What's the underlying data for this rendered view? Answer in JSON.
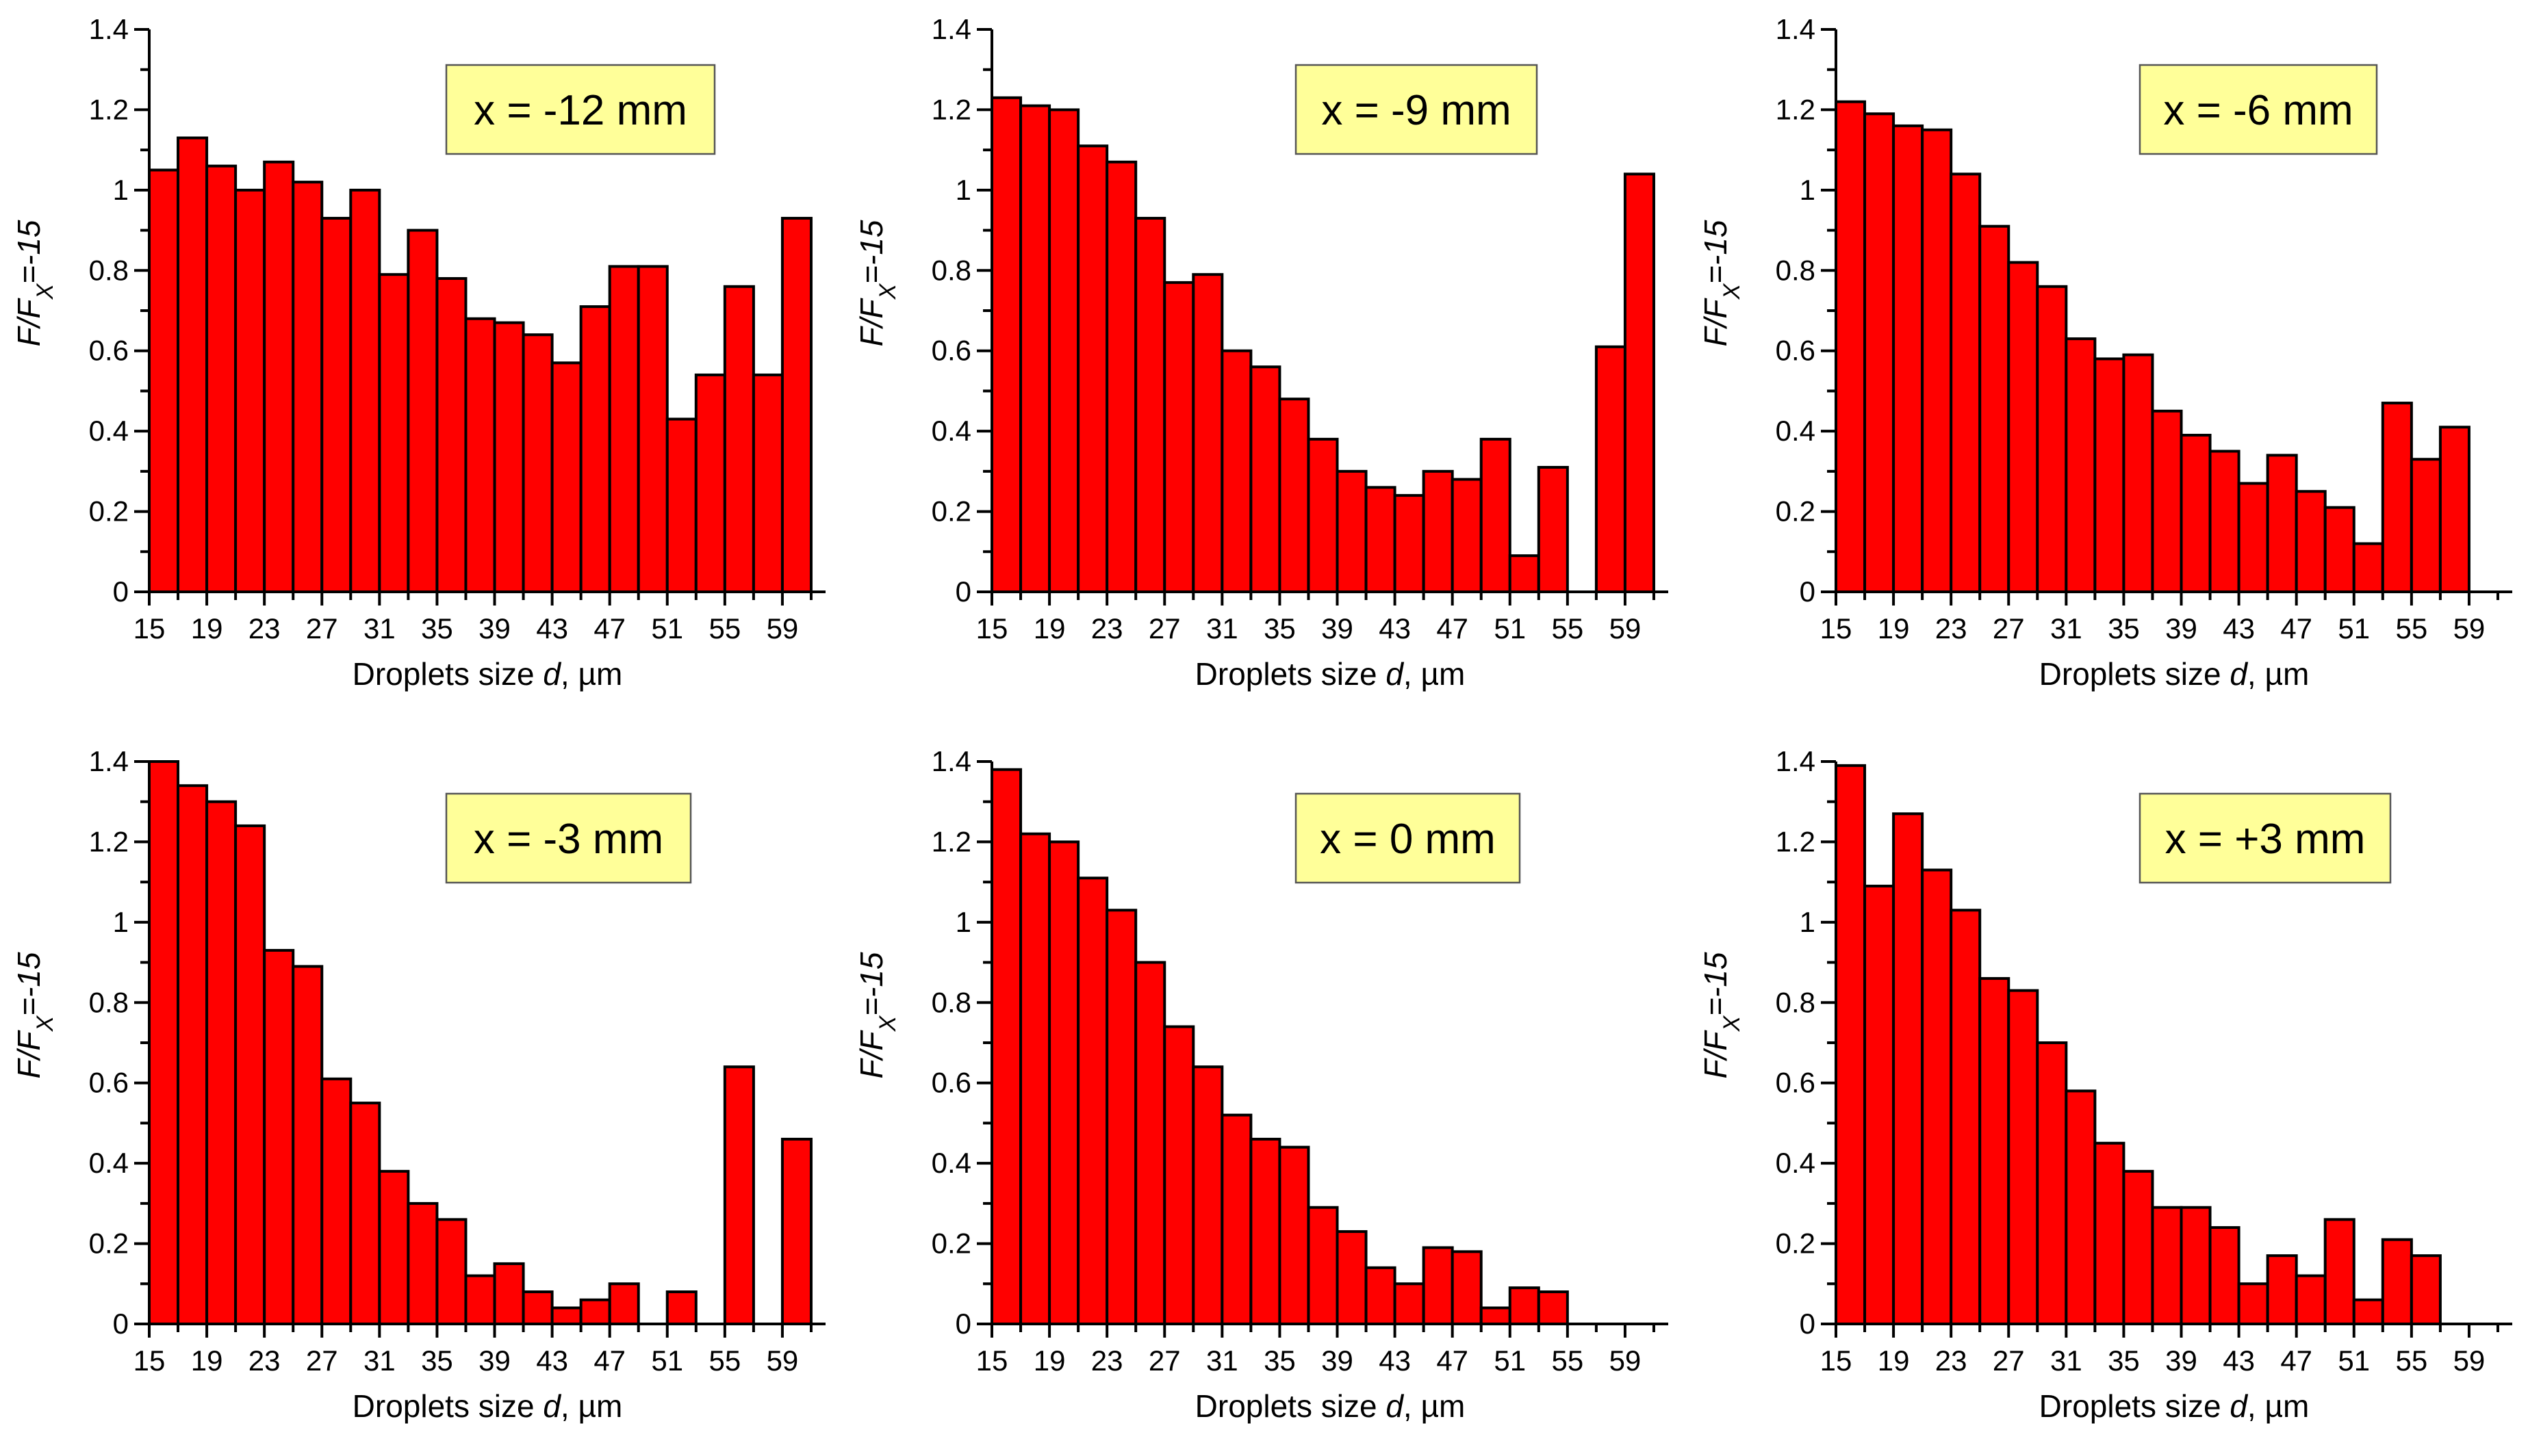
{
  "colors": {
    "bar": "#ff0000",
    "annotation_bg": "#ffff99",
    "axis": "#000000"
  },
  "chart_data": [
    {
      "type": "bar",
      "panel": "top-left",
      "title": "",
      "annotation": "x = -12 mm",
      "xlabel_prefix": "Droplets size ",
      "xlabel_var": "d",
      "xlabel_suffix": ", µm",
      "ylabel_prefix": "F/F",
      "ylabel_sub": "X",
      "ylabel_suffix": "=-15",
      "xlim": [
        15,
        62
      ],
      "ylim": [
        0,
        1.4
      ],
      "xticks": [
        15,
        19,
        23,
        27,
        31,
        35,
        39,
        43,
        47,
        51,
        55,
        59
      ],
      "yticks": [
        0,
        0.2,
        0.4,
        0.6,
        0.8,
        1,
        1.2,
        1.4
      ],
      "bin_width": 2,
      "bins": [
        15,
        17,
        19,
        21,
        23,
        25,
        27,
        29,
        31,
        33,
        35,
        37,
        39,
        41,
        43,
        45,
        47,
        49,
        51,
        53,
        55,
        57,
        59
      ],
      "values": [
        1.05,
        1.13,
        1.06,
        1.0,
        1.07,
        1.02,
        0.93,
        1.0,
        0.79,
        0.9,
        0.78,
        0.68,
        0.67,
        0.64,
        0.57,
        0.71,
        0.81,
        0.81,
        0.43,
        0.54,
        0.76,
        0.54,
        0.93
      ]
    },
    {
      "type": "bar",
      "panel": "top-middle",
      "title": "",
      "annotation": "x = -9 mm",
      "xlabel_prefix": "Droplets size ",
      "xlabel_var": "d",
      "xlabel_suffix": ", µm",
      "ylabel_prefix": "F/F",
      "ylabel_sub": "X",
      "ylabel_suffix": "=-15",
      "xlim": [
        15,
        62
      ],
      "ylim": [
        0,
        1.4
      ],
      "xticks": [
        15,
        19,
        23,
        27,
        31,
        35,
        39,
        43,
        47,
        51,
        55,
        59
      ],
      "yticks": [
        0,
        0.2,
        0.4,
        0.6,
        0.8,
        1,
        1.2,
        1.4
      ],
      "bin_width": 2,
      "bins": [
        15,
        17,
        19,
        21,
        23,
        25,
        27,
        29,
        31,
        33,
        35,
        37,
        39,
        41,
        43,
        45,
        47,
        49,
        51,
        53,
        55,
        57,
        59
      ],
      "values": [
        1.23,
        1.21,
        1.2,
        1.11,
        1.07,
        0.93,
        0.77,
        0.79,
        0.6,
        0.56,
        0.48,
        0.38,
        0.3,
        0.26,
        0.24,
        0.3,
        0.28,
        0.38,
        0.09,
        0.31,
        0.0,
        0.61,
        1.04
      ]
    },
    {
      "type": "bar",
      "panel": "top-right",
      "title": "",
      "annotation": "x = -6 mm",
      "xlabel_prefix": "Droplets size ",
      "xlabel_var": "d",
      "xlabel_suffix": ", µm",
      "ylabel_prefix": "F/F",
      "ylabel_sub": "X",
      "ylabel_suffix": "=-15",
      "xlim": [
        15,
        62
      ],
      "ylim": [
        0,
        1.4
      ],
      "xticks": [
        15,
        19,
        23,
        27,
        31,
        35,
        39,
        43,
        47,
        51,
        55,
        59
      ],
      "yticks": [
        0,
        0.2,
        0.4,
        0.6,
        0.8,
        1,
        1.2,
        1.4
      ],
      "bin_width": 2,
      "bins": [
        15,
        17,
        19,
        21,
        23,
        25,
        27,
        29,
        31,
        33,
        35,
        37,
        39,
        41,
        43,
        45,
        47,
        49,
        51,
        53,
        55,
        57
      ],
      "values": [
        1.22,
        1.19,
        1.16,
        1.15,
        1.04,
        0.91,
        0.82,
        0.76,
        0.63,
        0.58,
        0.59,
        0.45,
        0.39,
        0.35,
        0.27,
        0.34,
        0.25,
        0.21,
        0.12,
        0.47,
        0.33,
        0.41
      ]
    },
    {
      "type": "bar",
      "panel": "bottom-left",
      "title": "",
      "annotation": "x = -3 mm",
      "xlabel_prefix": "Droplets size ",
      "xlabel_var": "d",
      "xlabel_suffix": ", µm",
      "ylabel_prefix": "F/F",
      "ylabel_sub": "X",
      "ylabel_suffix": "=-15",
      "xlim": [
        15,
        62
      ],
      "ylim": [
        0,
        1.4
      ],
      "xticks": [
        15,
        19,
        23,
        27,
        31,
        35,
        39,
        43,
        47,
        51,
        55,
        59
      ],
      "yticks": [
        0,
        0.2,
        0.4,
        0.6,
        0.8,
        1,
        1.2,
        1.4
      ],
      "bin_width": 2,
      "bins": [
        15,
        17,
        19,
        21,
        23,
        25,
        27,
        29,
        31,
        33,
        35,
        37,
        39,
        41,
        43,
        45,
        47,
        49,
        51,
        53,
        55,
        57,
        59
      ],
      "values": [
        1.4,
        1.34,
        1.3,
        1.24,
        0.93,
        0.89,
        0.61,
        0.55,
        0.38,
        0.3,
        0.26,
        0.12,
        0.15,
        0.08,
        0.04,
        0.06,
        0.1,
        0.0,
        0.08,
        0.0,
        0.64,
        0.0,
        0.46
      ]
    },
    {
      "type": "bar",
      "panel": "bottom-middle",
      "title": "",
      "annotation": "x = 0 mm",
      "xlabel_prefix": "Droplets size ",
      "xlabel_var": "d",
      "xlabel_suffix": ", µm",
      "ylabel_prefix": "F/F",
      "ylabel_sub": "X",
      "ylabel_suffix": "=-15",
      "xlim": [
        15,
        62
      ],
      "ylim": [
        0,
        1.4
      ],
      "xticks": [
        15,
        19,
        23,
        27,
        31,
        35,
        39,
        43,
        47,
        51,
        55,
        59
      ],
      "yticks": [
        0,
        0.2,
        0.4,
        0.6,
        0.8,
        1,
        1.2,
        1.4
      ],
      "bin_width": 2,
      "bins": [
        15,
        17,
        19,
        21,
        23,
        25,
        27,
        29,
        31,
        33,
        35,
        37,
        39,
        41,
        43,
        45,
        47,
        49,
        51,
        53
      ],
      "values": [
        1.38,
        1.22,
        1.2,
        1.11,
        1.03,
        0.9,
        0.74,
        0.64,
        0.52,
        0.46,
        0.44,
        0.29,
        0.23,
        0.14,
        0.1,
        0.19,
        0.18,
        0.04,
        0.09,
        0.08
      ]
    },
    {
      "type": "bar",
      "panel": "bottom-right",
      "title": "",
      "annotation": "x = +3 mm",
      "xlabel_prefix": "Droplets size ",
      "xlabel_var": "d",
      "xlabel_suffix": ", µm",
      "ylabel_prefix": "F/F",
      "ylabel_sub": "X",
      "ylabel_suffix": "=-15",
      "xlim": [
        15,
        62
      ],
      "ylim": [
        0,
        1.4
      ],
      "xticks": [
        15,
        19,
        23,
        27,
        31,
        35,
        39,
        43,
        47,
        51,
        55,
        59
      ],
      "yticks": [
        0,
        0.2,
        0.4,
        0.6,
        0.8,
        1,
        1.2,
        1.4
      ],
      "bin_width": 2,
      "bins": [
        15,
        17,
        19,
        21,
        23,
        25,
        27,
        29,
        31,
        33,
        35,
        37,
        39,
        41,
        43,
        45,
        47,
        49,
        51,
        53,
        55
      ],
      "values": [
        1.39,
        1.09,
        1.27,
        1.13,
        1.03,
        0.86,
        0.83,
        0.7,
        0.58,
        0.45,
        0.38,
        0.29,
        0.29,
        0.24,
        0.1,
        0.17,
        0.12,
        0.26,
        0.06,
        0.21,
        0.17
      ]
    }
  ]
}
